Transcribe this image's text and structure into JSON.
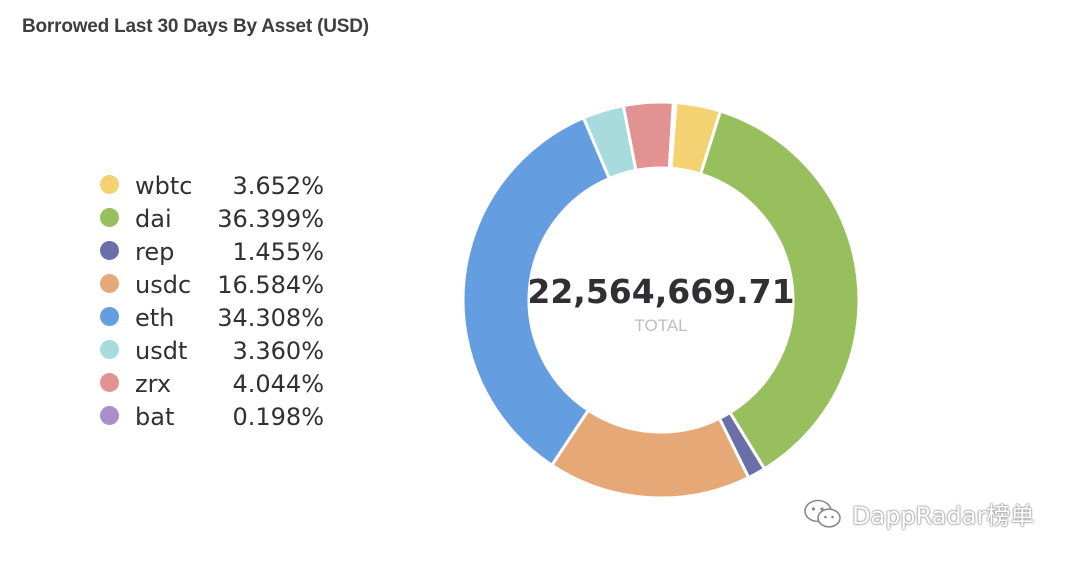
{
  "title": "Borrowed Last 30 Days By Asset (USD)",
  "chart_data": {
    "type": "pie",
    "title": "Borrowed Last 30 Days By Asset (USD)",
    "total": "22,564,669.71",
    "total_label": "TOTAL",
    "series": [
      {
        "name": "wbtc",
        "percent": 3.652,
        "label": "3.652%",
        "color": "#f4d272"
      },
      {
        "name": "dai",
        "percent": 36.399,
        "label": "36.399%",
        "color": "#97bf5d"
      },
      {
        "name": "rep",
        "percent": 1.455,
        "label": "1.455%",
        "color": "#6b6fa9"
      },
      {
        "name": "usdc",
        "percent": 16.584,
        "label": "16.584%",
        "color": "#e7a877"
      },
      {
        "name": "eth",
        "percent": 34.308,
        "label": "34.308%",
        "color": "#659ee0"
      },
      {
        "name": "usdt",
        "percent": 3.36,
        "label": "3.360%",
        "color": "#a7dbdd"
      },
      {
        "name": "zrx",
        "percent": 4.044,
        "label": "4.044%",
        "color": "#e39292"
      },
      {
        "name": "bat",
        "percent": 0.198,
        "label": "0.198%",
        "color": "#a88fcc"
      }
    ],
    "legend_position": "left"
  },
  "watermark": {
    "text": "DappRadar榜单",
    "icon": "wechat-icon"
  }
}
